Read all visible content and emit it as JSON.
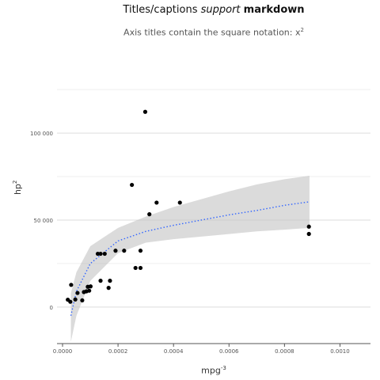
{
  "title": {
    "prefix": "Titles/captions ",
    "italic": "support",
    "bold": "markdown"
  },
  "subtitle": {
    "text": "Axis titles contain the square notation: x",
    "sup": "2"
  },
  "axes": {
    "xlabel": "mpg",
    "xlabel_sup": "-3",
    "ylabel": "hp",
    "ylabel_sup": "2"
  },
  "chart_data": {
    "type": "scatter",
    "xlim": [
      -2e-05,
      0.00111
    ],
    "ylim": [
      -21000,
      131000
    ],
    "x_ticks": [
      0.0,
      0.0002,
      0.0004,
      0.0006,
      0.0008,
      0.001
    ],
    "x_tick_labels": [
      "0.0000",
      "0.0002",
      "0.0004",
      "0.0006",
      "0.0008",
      "0.0010"
    ],
    "y_ticks": [
      0,
      50000,
      100000
    ],
    "y_tick_labels": [
      "0",
      "50 000",
      "100 000"
    ],
    "grid": true,
    "legend": "none",
    "colors": {
      "points": "#000000",
      "fit_line": "#3366ff",
      "ribbon": "#bdbdbd"
    },
    "series": [
      {
        "points": [
          {
            "x": 1.9e-05,
            "y": 4225
          },
          {
            "x": 2.8e-05,
            "y": 3025
          },
          {
            "x": 3.1e-05,
            "y": 12769
          },
          {
            "x": 4.6e-05,
            "y": 4356
          },
          {
            "x": 5.4e-05,
            "y": 8100
          },
          {
            "x": 7.1e-05,
            "y": 3844
          },
          {
            "x": 7.7e-05,
            "y": 8649
          },
          {
            "x": 8.6e-05,
            "y": 9025
          },
          {
            "x": 9.1e-05,
            "y": 11664
          },
          {
            "x": 9.6e-05,
            "y": 9409
          },
          {
            "x": 0.000101,
            "y": 11881
          },
          {
            "x": 0.000127,
            "y": 30625
          },
          {
            "x": 0.000137,
            "y": 15129
          },
          {
            "x": 0.000137,
            "y": 30625
          },
          {
            "x": 0.000152,
            "y": 30625
          },
          {
            "x": 0.000166,
            "y": 11025
          },
          {
            "x": 0.000171,
            "y": 15129
          },
          {
            "x": 0.000191,
            "y": 32400
          },
          {
            "x": 0.000222,
            "y": 32400
          },
          {
            "x": 0.00025,
            "y": 70225
          },
          {
            "x": 0.000263,
            "y": 22500
          },
          {
            "x": 0.000281,
            "y": 22500
          },
          {
            "x": 0.000281,
            "y": 32400
          },
          {
            "x": 0.000298,
            "y": 112225
          },
          {
            "x": 0.000313,
            "y": 53361
          },
          {
            "x": 0.000339,
            "y": 60025
          },
          {
            "x": 0.000423,
            "y": 60025
          },
          {
            "x": 0.000888,
            "y": 46225
          },
          {
            "x": 0.000888,
            "y": 42025
          }
        ]
      }
    ],
    "fit": {
      "type": "log",
      "x": [
        3e-05,
        5e-05,
        0.0001,
        0.0002,
        0.0003,
        0.0004,
        0.0005,
        0.0006,
        0.0007,
        0.0008,
        0.00089
      ],
      "y": [
        -5000,
        9000,
        25000,
        38000,
        43500,
        47000,
        50000,
        53000,
        55500,
        58500,
        60500
      ],
      "lower": [
        -20000,
        -5000,
        15000,
        31000,
        37000,
        39000,
        40500,
        42000,
        43500,
        44500,
        45500
      ],
      "upper": [
        8000,
        20000,
        35000,
        45500,
        52000,
        57500,
        62000,
        66500,
        70500,
        73500,
        75500
      ]
    }
  }
}
